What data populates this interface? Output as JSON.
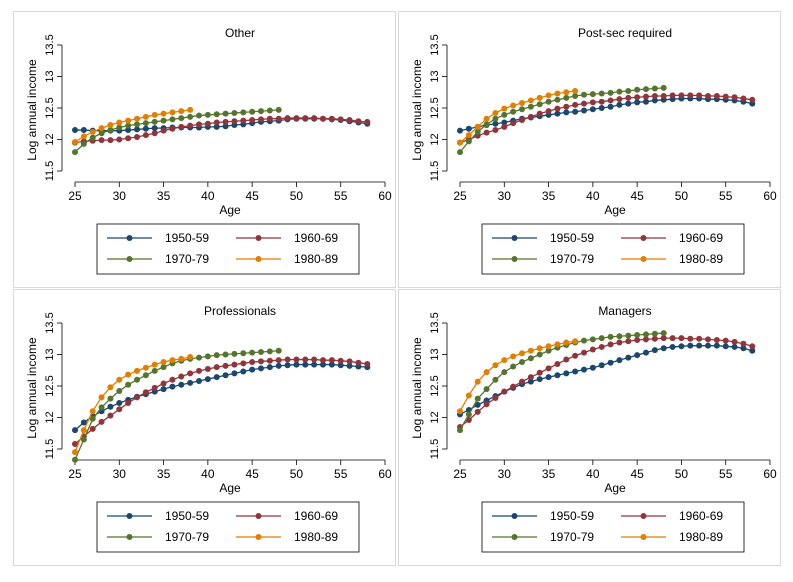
{
  "colors": {
    "1950-59": "#1a476f",
    "1960-69": "#90353b",
    "1970-79": "#55752f",
    "1980-89": "#e37e00"
  },
  "chart_data": [
    {
      "type": "line",
      "title": "Other",
      "xlabel": "Age",
      "ylabel": "Log annual income",
      "xlim": [
        25,
        60
      ],
      "ylim": [
        11.5,
        13.5
      ],
      "xticks": [
        25,
        30,
        35,
        40,
        45,
        50,
        55,
        60
      ],
      "yticks": [
        11.5,
        12,
        12.5,
        13,
        13.5
      ],
      "ytick_labels": [
        "11.5",
        "12",
        "12.5",
        "13",
        "13.5"
      ],
      "legend": [
        "1950-59",
        "1960-69",
        "1970-79",
        "1980-89"
      ],
      "series": [
        {
          "name": "1950-59",
          "x_start": 25,
          "values": [
            12.15,
            12.15,
            12.14,
            12.14,
            12.14,
            12.14,
            12.15,
            12.16,
            12.17,
            12.18,
            12.18,
            12.19,
            12.19,
            12.19,
            12.19,
            12.2,
            12.2,
            12.21,
            12.23,
            12.24,
            12.26,
            12.28,
            12.29,
            12.3,
            12.32,
            12.33,
            12.33,
            12.33,
            12.33,
            12.32,
            12.31,
            12.29,
            12.27,
            12.25
          ]
        },
        {
          "name": "1960-69",
          "x_start": 25,
          "values": [
            11.95,
            11.97,
            11.98,
            11.99,
            11.99,
            12.0,
            12.02,
            12.04,
            12.07,
            12.1,
            12.14,
            12.17,
            12.2,
            12.22,
            12.24,
            12.25,
            12.27,
            12.28,
            12.29,
            12.3,
            12.31,
            12.32,
            12.33,
            12.33,
            12.34,
            12.34,
            12.34,
            12.34,
            12.33,
            12.33,
            12.32,
            12.31,
            12.29,
            12.28
          ]
        },
        {
          "name": "1970-79",
          "x_start": 25,
          "values": [
            11.8,
            11.93,
            12.03,
            12.1,
            12.15,
            12.19,
            12.22,
            12.24,
            12.26,
            12.28,
            12.3,
            12.32,
            12.34,
            12.36,
            12.38,
            12.39,
            12.4,
            12.41,
            12.42,
            12.43,
            12.44,
            12.45,
            12.46,
            12.47
          ]
        },
        {
          "name": "1980-89",
          "x_start": 25,
          "values": [
            11.96,
            12.05,
            12.12,
            12.18,
            12.23,
            12.27,
            12.3,
            12.33,
            12.36,
            12.39,
            12.41,
            12.43,
            12.45,
            12.47
          ]
        }
      ]
    },
    {
      "type": "line",
      "title": "Post-sec required",
      "xlabel": "Age",
      "ylabel": "Log annual income",
      "xlim": [
        25,
        60
      ],
      "ylim": [
        11.5,
        13.5
      ],
      "xticks": [
        25,
        30,
        35,
        40,
        45,
        50,
        55,
        60
      ],
      "yticks": [
        11.5,
        12,
        12.5,
        13,
        13.5
      ],
      "ytick_labels": [
        "11.5",
        "12",
        "12.5",
        "13",
        "13.5"
      ],
      "legend": [
        "1950-59",
        "1960-69",
        "1970-79",
        "1980-89"
      ],
      "series": [
        {
          "name": "1950-59",
          "x_start": 25,
          "values": [
            12.14,
            12.17,
            12.2,
            12.23,
            12.25,
            12.27,
            12.3,
            12.33,
            12.35,
            12.37,
            12.39,
            12.41,
            12.43,
            12.44,
            12.46,
            12.48,
            12.5,
            12.52,
            12.55,
            12.57,
            12.59,
            12.6,
            12.62,
            12.63,
            12.64,
            12.65,
            12.65,
            12.65,
            12.64,
            12.64,
            12.63,
            12.62,
            12.6,
            12.57
          ]
        },
        {
          "name": "1960-69",
          "x_start": 25,
          "values": [
            11.95,
            12.0,
            12.06,
            12.11,
            12.15,
            12.2,
            12.26,
            12.31,
            12.36,
            12.41,
            12.45,
            12.49,
            12.52,
            12.55,
            12.57,
            12.59,
            12.6,
            12.62,
            12.64,
            12.66,
            12.67,
            12.68,
            12.69,
            12.69,
            12.7,
            12.7,
            12.7,
            12.7,
            12.69,
            12.69,
            12.68,
            12.67,
            12.65,
            12.63
          ]
        },
        {
          "name": "1970-79",
          "x_start": 25,
          "values": [
            11.8,
            11.97,
            12.12,
            12.24,
            12.33,
            12.39,
            12.44,
            12.48,
            12.52,
            12.56,
            12.6,
            12.63,
            12.66,
            12.69,
            12.71,
            12.72,
            12.73,
            12.74,
            12.76,
            12.77,
            12.79,
            12.8,
            12.81,
            12.82
          ]
        },
        {
          "name": "1980-89",
          "x_start": 25,
          "values": [
            11.95,
            12.07,
            12.2,
            12.33,
            12.42,
            12.49,
            12.54,
            12.58,
            12.62,
            12.66,
            12.7,
            12.73,
            12.75,
            12.77
          ]
        }
      ]
    },
    {
      "type": "line",
      "title": "Professionals",
      "xlabel": "Age",
      "ylabel": "Log annual income",
      "xlim": [
        25,
        60
      ],
      "ylim": [
        11.5,
        13.5
      ],
      "xticks": [
        25,
        30,
        35,
        40,
        45,
        50,
        55,
        60
      ],
      "yticks": [
        11.5,
        12,
        12.5,
        13,
        13.5
      ],
      "ytick_labels": [
        "11.5",
        "12",
        "12.5",
        "13",
        "13.5"
      ],
      "legend": [
        "1950-59",
        "1960-69",
        "1970-79",
        "1980-89"
      ],
      "series": [
        {
          "name": "1950-59",
          "x_start": 25,
          "values": [
            11.8,
            11.92,
            12.02,
            12.1,
            12.17,
            12.23,
            12.28,
            12.33,
            12.37,
            12.41,
            12.45,
            12.49,
            12.52,
            12.55,
            12.58,
            12.61,
            12.64,
            12.67,
            12.7,
            12.73,
            12.76,
            12.78,
            12.8,
            12.82,
            12.83,
            12.84,
            12.84,
            12.84,
            12.84,
            12.84,
            12.83,
            12.82,
            12.81,
            12.8
          ]
        },
        {
          "name": "1960-69",
          "x_start": 25,
          "values": [
            11.58,
            11.7,
            11.82,
            11.93,
            12.03,
            12.13,
            12.23,
            12.32,
            12.4,
            12.47,
            12.54,
            12.6,
            12.65,
            12.7,
            12.74,
            12.77,
            12.8,
            12.82,
            12.84,
            12.86,
            12.88,
            12.89,
            12.9,
            12.91,
            12.92,
            12.92,
            12.92,
            12.92,
            12.91,
            12.91,
            12.9,
            12.89,
            12.87,
            12.85
          ]
        },
        {
          "name": "1970-79",
          "x_start": 25,
          "values": [
            11.33,
            11.65,
            11.98,
            12.16,
            12.3,
            12.42,
            12.52,
            12.6,
            12.67,
            12.74,
            12.8,
            12.86,
            12.9,
            12.93,
            12.95,
            12.97,
            12.99,
            13.0,
            13.01,
            13.02,
            13.03,
            13.04,
            13.05,
            13.06
          ]
        },
        {
          "name": "1980-89",
          "x_start": 25,
          "values": [
            11.45,
            11.8,
            12.1,
            12.32,
            12.48,
            12.6,
            12.68,
            12.74,
            12.79,
            12.84,
            12.88,
            12.91,
            12.93,
            12.96
          ]
        }
      ]
    },
    {
      "type": "line",
      "title": "Managers",
      "xlabel": "Age",
      "ylabel": "Log annual income",
      "xlim": [
        25,
        60
      ],
      "ylim": [
        11.5,
        13.5
      ],
      "xticks": [
        25,
        30,
        35,
        40,
        45,
        50,
        55,
        60
      ],
      "yticks": [
        11.5,
        12,
        12.5,
        13,
        13.5
      ],
      "ytick_labels": [
        "11.5",
        "12",
        "12.5",
        "13",
        "13.5"
      ],
      "legend": [
        "1950-59",
        "1960-69",
        "1970-79",
        "1980-89"
      ],
      "series": [
        {
          "name": "1950-59",
          "x_start": 25,
          "values": [
            12.05,
            12.12,
            12.2,
            12.27,
            12.34,
            12.41,
            12.47,
            12.53,
            12.57,
            12.61,
            12.64,
            12.67,
            12.7,
            12.73,
            12.76,
            12.79,
            12.83,
            12.87,
            12.91,
            12.95,
            12.99,
            13.03,
            13.07,
            13.1,
            13.12,
            13.13,
            13.14,
            13.14,
            13.14,
            13.14,
            13.13,
            13.12,
            13.1,
            13.06
          ]
        },
        {
          "name": "1960-69",
          "x_start": 25,
          "values": [
            11.85,
            11.96,
            12.09,
            12.21,
            12.31,
            12.41,
            12.49,
            12.57,
            12.64,
            12.71,
            12.78,
            12.85,
            12.92,
            12.98,
            13.03,
            13.08,
            13.12,
            13.16,
            13.19,
            13.21,
            13.23,
            13.24,
            13.25,
            13.26,
            13.26,
            13.26,
            13.25,
            13.25,
            13.24,
            13.23,
            13.22,
            13.2,
            13.17,
            13.13
          ]
        },
        {
          "name": "1970-79",
          "x_start": 25,
          "values": [
            11.8,
            12.05,
            12.3,
            12.45,
            12.6,
            12.72,
            12.81,
            12.88,
            12.94,
            13.0,
            13.06,
            13.11,
            13.15,
            13.19,
            13.22,
            13.24,
            13.26,
            13.28,
            13.29,
            13.3,
            13.31,
            13.32,
            13.33,
            13.34
          ]
        },
        {
          "name": "1980-89",
          "x_start": 25,
          "values": [
            12.1,
            12.35,
            12.57,
            12.72,
            12.83,
            12.91,
            12.97,
            13.02,
            13.06,
            13.1,
            13.13,
            13.16,
            13.19,
            13.21
          ]
        }
      ]
    }
  ]
}
